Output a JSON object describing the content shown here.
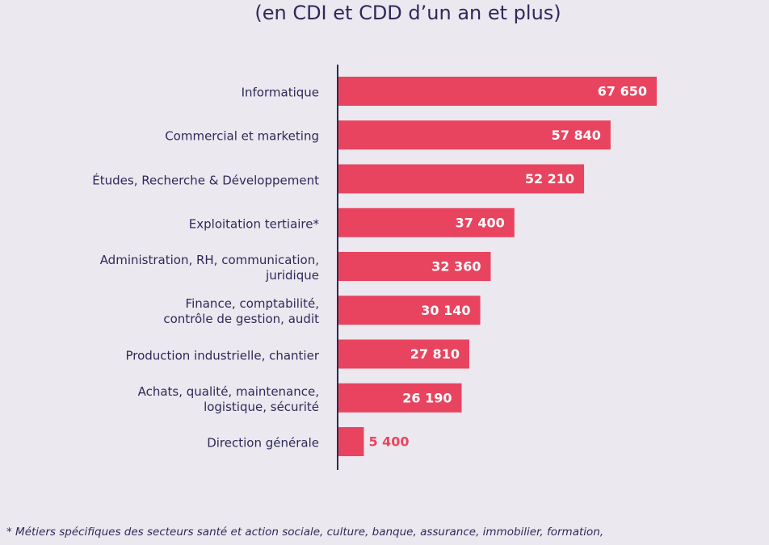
{
  "chart_data": {
    "type": "bar",
    "orientation": "horizontal",
    "subtitle": "(en CDI et CDD d’un an et plus)",
    "categories": [
      "Informatique",
      "Commercial et marketing",
      "Études, Recherche & Développement",
      "Exploitation tertiaire*",
      "Administration, RH, communication,\njuridique",
      "Finance, comptabilité,\ncontrôle de gestion, audit",
      "Production industrielle, chantier",
      "Achats, qualité, maintenance,\nlogistique, sécurité",
      "Direction générale"
    ],
    "values": [
      67650,
      57840,
      52210,
      37400,
      32360,
      30140,
      27810,
      26190,
      5400
    ],
    "value_labels": [
      "67 650",
      "57 840",
      "52 210",
      "37 400",
      "32 360",
      "30 140",
      "27 810",
      "26 190",
      "5 400"
    ],
    "color": "#e8445f",
    "footnote": "* Métiers spécifiques des secteurs santé et action sociale, culture, banque, assurance, immobilier, formation,"
  }
}
